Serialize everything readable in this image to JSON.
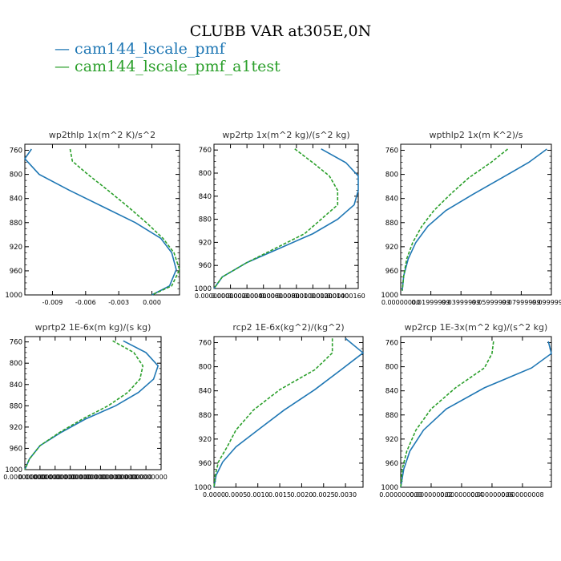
{
  "title": "CLUBB VAR at305E,0N",
  "legend": [
    {
      "label": "cam144_lscale_pmf",
      "color": "#1f77b4"
    },
    {
      "label": "cam144_lscale_pmf_a1test",
      "color": "#2ca02c"
    }
  ],
  "chart_data": [
    {
      "type": "line",
      "title": "wp2thlp  1x(m^2 K)/s^2",
      "xlim": [
        -0.0115,
        0.0025
      ],
      "ylim": [
        1000,
        750
      ],
      "y_reversed": true,
      "xticks": [
        -0.009,
        -0.006,
        -0.003,
        0.0
      ],
      "xtick_labels": [
        "-0.009",
        "-0.006",
        "-0.003",
        "0.000"
      ],
      "yticks": [
        760,
        800,
        840,
        880,
        920,
        960,
        1000
      ],
      "ytick_labels": [
        "760",
        "800",
        "840",
        "880",
        "920",
        "960",
        "1000"
      ],
      "series": [
        {
          "name": "cam144_lscale_pmf",
          "color": "#1f77b4",
          "dashed": false,
          "x": [
            -0.0109,
            -0.0115,
            -0.0102,
            -0.0075,
            -0.0045,
            -0.0015,
            0.0008,
            0.0018,
            0.0022,
            0.0016,
            0.0
          ],
          "y": [
            758,
            774,
            800,
            826,
            853,
            880,
            906,
            930,
            958,
            985,
            1000
          ]
        },
        {
          "name": "cam144_lscale_pmf_a1test",
          "color": "#2ca02c",
          "dashed": true,
          "x": [
            -0.0074,
            -0.0072,
            -0.0058,
            -0.004,
            -0.0022,
            -0.0005,
            0.001,
            0.002,
            0.0025,
            0.0018,
            0.0
          ],
          "y": [
            758,
            778,
            800,
            826,
            853,
            880,
            906,
            930,
            958,
            985,
            1000
          ]
        }
      ]
    },
    {
      "type": "line",
      "title": "wp2rtp  1x(m^2 kg)/(s^2 kg)",
      "xlim": [
        0,
        1.75e-06
      ],
      "ylim": [
        1000,
        750
      ],
      "y_reversed": true,
      "xticks": [
        0,
        2e-07,
        4e-07,
        6e-07,
        8e-07,
        1e-06,
        1.2e-06,
        1.4e-06,
        1.6e-06
      ],
      "xtick_labels": [
        "0.00000000",
        "0.00000020",
        "0.00000040",
        "0.00000060",
        "0.00000080",
        "0.00000100",
        "0.00000120",
        "0.00000140",
        "0.00000160"
      ],
      "yticks": [
        760,
        800,
        840,
        880,
        920,
        960,
        1000
      ],
      "ytick_labels": [
        "760",
        "800",
        "840",
        "880",
        "920",
        "960",
        "1000"
      ],
      "series": [
        {
          "name": "cam144_lscale_pmf",
          "color": "#1f77b4",
          "dashed": false,
          "x": [
            1.3e-06,
            1.6e-06,
            1.75e-06,
            1.75e-06,
            1.7e-06,
            1.5e-06,
            1.2e-06,
            8e-07,
            4e-07,
            1e-07,
            0.0
          ],
          "y": [
            758,
            782,
            805,
            830,
            855,
            880,
            905,
            930,
            955,
            980,
            1000
          ]
        },
        {
          "name": "cam144_lscale_pmf_a1test",
          "color": "#2ca02c",
          "dashed": true,
          "x": [
            9.8e-07,
            1.2e-06,
            1.4e-06,
            1.5e-06,
            1.5e-06,
            1.3e-06,
            1.1e-06,
            7.5e-07,
            4e-07,
            1e-07,
            0.0
          ],
          "y": [
            758,
            782,
            805,
            830,
            855,
            880,
            905,
            930,
            955,
            980,
            1000
          ]
        }
      ]
    },
    {
      "type": "line",
      "title": "wpthlp2  1x(m K^2)/s",
      "xlim": [
        0,
        0.1
      ],
      "ylim": [
        1000,
        750
      ],
      "y_reversed": true,
      "xticks": [
        0,
        0.02,
        0.04,
        0.06,
        0.08,
        0.1
      ],
      "xtick_labels": [
        "0.00000000",
        "0.01999999",
        "0.03999999",
        "0.05999999",
        "0.07999999",
        "0.09999999"
      ],
      "yticks": [
        760,
        800,
        840,
        880,
        920,
        960,
        1000
      ],
      "ytick_labels": [
        "760",
        "800",
        "840",
        "880",
        "920",
        "960",
        "1000"
      ],
      "series": [
        {
          "name": "cam144_lscale_pmf",
          "color": "#1f77b4",
          "dashed": false,
          "x": [
            0.097,
            0.085,
            0.067,
            0.048,
            0.03,
            0.018,
            0.01,
            0.005,
            0.002,
            0.001
          ],
          "y": [
            758,
            780,
            806,
            833,
            860,
            886,
            913,
            940,
            968,
            993
          ]
        },
        {
          "name": "cam144_lscale_pmf_a1test",
          "color": "#2ca02c",
          "dashed": true,
          "x": [
            0.071,
            0.06,
            0.045,
            0.033,
            0.022,
            0.014,
            0.008,
            0.004,
            0.002,
            0.001
          ],
          "y": [
            758,
            780,
            806,
            833,
            860,
            886,
            913,
            940,
            968,
            993
          ]
        }
      ]
    },
    {
      "type": "line",
      "title": "wprtp2  1E-6x(m kg)/(s kg)",
      "xlim": [
        0,
        9e-10
      ],
      "ylim": [
        1000,
        750
      ],
      "y_reversed": true,
      "xticks": [
        0,
        1e-10,
        2e-10,
        3e-10,
        4e-10,
        5e-10,
        6e-10,
        7e-10,
        8e-10
      ],
      "xtick_labels": [
        "0.000000000",
        "0.000000000",
        "0.000000000",
        "0.000000000",
        "0.000000000",
        "0.000000000",
        "0.000000000",
        "0.000000000",
        "0.000000000"
      ],
      "yticks": [
        760,
        800,
        840,
        880,
        920,
        960,
        1000
      ],
      "ytick_labels": [
        "760",
        "800",
        "840",
        "880",
        "920",
        "960",
        "1000"
      ],
      "series": [
        {
          "name": "cam144_lscale_pmf",
          "color": "#1f77b4",
          "dashed": false,
          "x": [
            6.5e-10,
            8e-10,
            8.8e-10,
            8.5e-10,
            7.5e-10,
            6e-10,
            4e-10,
            2.4e-10,
            1e-10,
            3e-11,
            0.0
          ],
          "y": [
            758,
            780,
            805,
            830,
            855,
            880,
            905,
            930,
            955,
            980,
            1000
          ]
        },
        {
          "name": "cam144_lscale_pmf_a1test",
          "color": "#2ca02c",
          "dashed": true,
          "x": [
            5.8e-10,
            7.2e-10,
            7.8e-10,
            7.6e-10,
            6.8e-10,
            5.5e-10,
            3.8e-10,
            2.3e-10,
            1e-10,
            3e-11,
            0.0
          ],
          "y": [
            758,
            780,
            805,
            830,
            855,
            880,
            905,
            930,
            955,
            980,
            1000
          ]
        }
      ]
    },
    {
      "type": "line",
      "title": "rcp2  1E-6x(kg^2)/(kg^2)",
      "xlim": [
        0,
        0.0034
      ],
      "ylim": [
        1000,
        750
      ],
      "y_reversed": true,
      "xticks": [
        0,
        0.0005,
        0.001,
        0.0015,
        0.002,
        0.0025,
        0.003
      ],
      "xtick_labels": [
        "0.0000",
        "0.0005",
        "0.0010",
        "0.0015",
        "0.0020",
        "0.0025",
        "0.0030"
      ],
      "yticks": [
        760,
        800,
        840,
        880,
        920,
        960,
        1000
      ],
      "ytick_labels": [
        "760",
        "800",
        "840",
        "880",
        "920",
        "960",
        "1000"
      ],
      "series": [
        {
          "name": "cam144_lscale_pmf",
          "color": "#1f77b4",
          "dashed": false,
          "x": [
            0.003,
            0.0034,
            0.0029,
            0.0023,
            0.0016,
            0.001,
            0.0005,
            0.0002,
            5e-05,
            0.0
          ],
          "y": [
            753,
            777,
            805,
            838,
            872,
            905,
            933,
            958,
            980,
            1000
          ]
        },
        {
          "name": "cam144_lscale_pmf_a1test",
          "color": "#2ca02c",
          "dashed": true,
          "x": [
            0.0027,
            0.0027,
            0.0023,
            0.0015,
            0.0009,
            0.0005,
            0.0003,
            0.0001,
            3e-05,
            0.0
          ],
          "y": [
            753,
            777,
            805,
            838,
            872,
            905,
            933,
            958,
            980,
            1000
          ]
        }
      ]
    },
    {
      "type": "line",
      "title": "wp2rcp  1E-3x(m^2 kg)/(s^2 kg)",
      "xlim": [
        0,
        9.9e-09
      ],
      "ylim": [
        1000,
        750
      ],
      "y_reversed": true,
      "xticks": [
        0,
        2e-09,
        4e-09,
        6e-09,
        8e-09
      ],
      "xtick_labels": [
        "0.000000000",
        "0.000000002",
        "0.000000004",
        "0.000000006",
        "0.000000008"
      ],
      "yticks": [
        760,
        800,
        840,
        880,
        920,
        960,
        1000
      ],
      "ytick_labels": [
        "760",
        "800",
        "840",
        "880",
        "920",
        "960",
        "1000"
      ],
      "series": [
        {
          "name": "cam144_lscale_pmf",
          "color": "#1f77b4",
          "dashed": false,
          "x": [
            9.7e-09,
            9.9e-09,
            8.6e-09,
            5.5e-09,
            3e-09,
            1.5e-09,
            6e-10,
            2e-10,
            0.0
          ],
          "y": [
            758,
            778,
            802,
            835,
            870,
            905,
            940,
            970,
            1000
          ]
        },
        {
          "name": "cam144_lscale_pmf_a1test",
          "color": "#2ca02c",
          "dashed": true,
          "x": [
            6.1e-09,
            6e-09,
            5.5e-09,
            3.6e-09,
            2e-09,
            1e-09,
            4e-10,
            1e-10,
            0.0
          ],
          "y": [
            758,
            778,
            802,
            835,
            870,
            905,
            940,
            970,
            1000
          ]
        }
      ]
    }
  ]
}
